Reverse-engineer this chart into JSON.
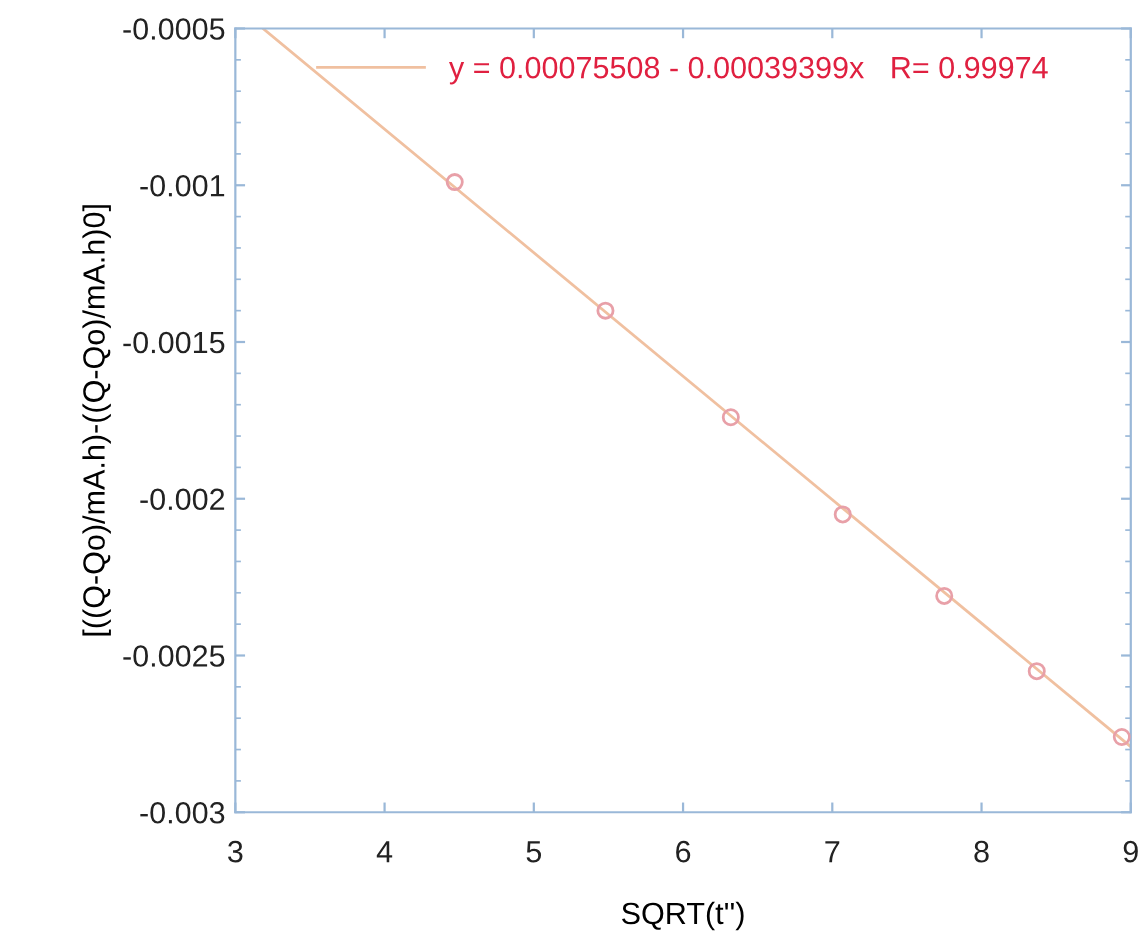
{
  "chart_data": {
    "type": "scatter",
    "xlabel": "SQRT(t'')",
    "ylabel": "[((Q-Qo)/mA.h)-((Q-Qo)/mA.h)0]",
    "xlim": [
      3,
      9
    ],
    "xticks": [
      3,
      4,
      5,
      6,
      7,
      8,
      9
    ],
    "ylim": [
      -0.003,
      -0.0005
    ],
    "yticks": [
      -0.003,
      -0.0025,
      -0.002,
      -0.0015,
      -0.001,
      -0.0005
    ],
    "grid": false,
    "legend": "top",
    "series": [
      {
        "marker": "circle",
        "color": "#e8a0a8",
        "x": [
          4.47,
          5.48,
          6.32,
          7.07,
          7.75,
          8.37,
          8.94
        ],
        "values": [
          -0.00099,
          -0.0014,
          -0.00174,
          -0.00205,
          -0.00231,
          -0.00255,
          -0.00276
        ]
      },
      {
        "type": "line",
        "marker": "none",
        "name": "y = 0.00075508 - 0.00039399x   R= 0.99974",
        "color": "#f0c0a0",
        "x": [
          3.19,
          9
        ],
        "values": [
          -0.000502,
          -0.002791
        ]
      }
    ]
  }
}
